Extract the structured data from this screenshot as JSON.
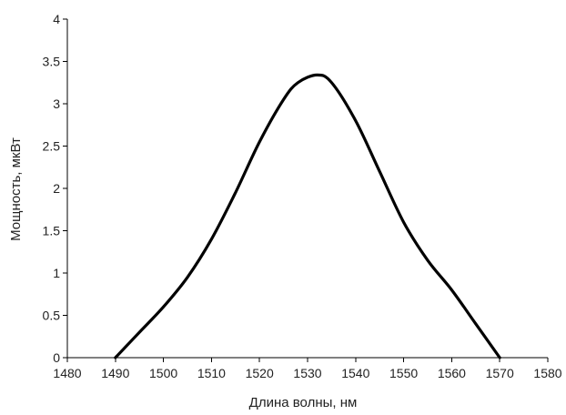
{
  "chart_data": {
    "type": "line",
    "title": "",
    "xlabel": "Длина волны, нм",
    "ylabel": "Мощность, мкВт",
    "xlim": [
      1480,
      1580
    ],
    "ylim": [
      0,
      4
    ],
    "x_ticks": [
      1480,
      1490,
      1500,
      1510,
      1520,
      1530,
      1540,
      1550,
      1560,
      1570,
      1580
    ],
    "y_ticks": [
      0,
      0.5,
      1,
      1.5,
      2,
      2.5,
      3,
      3.5,
      4
    ],
    "grid": false,
    "legend": "none",
    "colors": {
      "line": "#000000",
      "axis": "#000000",
      "text": "#222222"
    },
    "series": [
      {
        "x": [
          1490,
          1495,
          1500,
          1505,
          1510,
          1515,
          1520,
          1525,
          1528,
          1532,
          1535,
          1540,
          1545,
          1550,
          1555,
          1560,
          1565,
          1570
        ],
        "y": [
          0,
          0.3,
          0.6,
          0.95,
          1.4,
          1.95,
          2.55,
          3.05,
          3.25,
          3.34,
          3.25,
          2.8,
          2.2,
          1.6,
          1.15,
          0.8,
          0.4,
          0
        ]
      }
    ]
  }
}
